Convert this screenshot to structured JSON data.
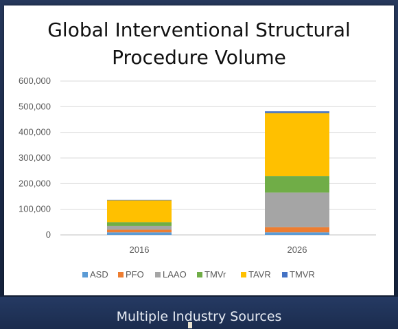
{
  "footer": {
    "text": "Multiple Industry Sources"
  },
  "chart_data": {
    "type": "bar",
    "stacked": true,
    "title_lines": [
      "Global Interventional Structural",
      "Procedure Volume"
    ],
    "categories": [
      "2016",
      "2026"
    ],
    "ylim": [
      0,
      600000
    ],
    "yticks": [
      0,
      100000,
      200000,
      300000,
      400000,
      500000,
      600000
    ],
    "ytick_labels": [
      "0",
      "100,000",
      "200,000",
      "300,000",
      "400,000",
      "500,000",
      "600,000"
    ],
    "grid": true,
    "legend_position": "bottom",
    "series": [
      {
        "name": "ASD",
        "color": "#5b9bd5",
        "values": [
          10000,
          10000
        ]
      },
      {
        "name": "PFO",
        "color": "#ed7d31",
        "values": [
          10000,
          20000
        ]
      },
      {
        "name": "LAAO",
        "color": "#a5a5a5",
        "values": [
          15000,
          135000
        ]
      },
      {
        "name": "TMVr",
        "color": "#70ad47",
        "values": [
          15000,
          65000
        ]
      },
      {
        "name": "TAVR",
        "color": "#ffc000",
        "values": [
          85000,
          245000
        ]
      },
      {
        "name": "TMVR",
        "color": "#4472c4",
        "values": [
          2000,
          7000
        ]
      }
    ]
  }
}
